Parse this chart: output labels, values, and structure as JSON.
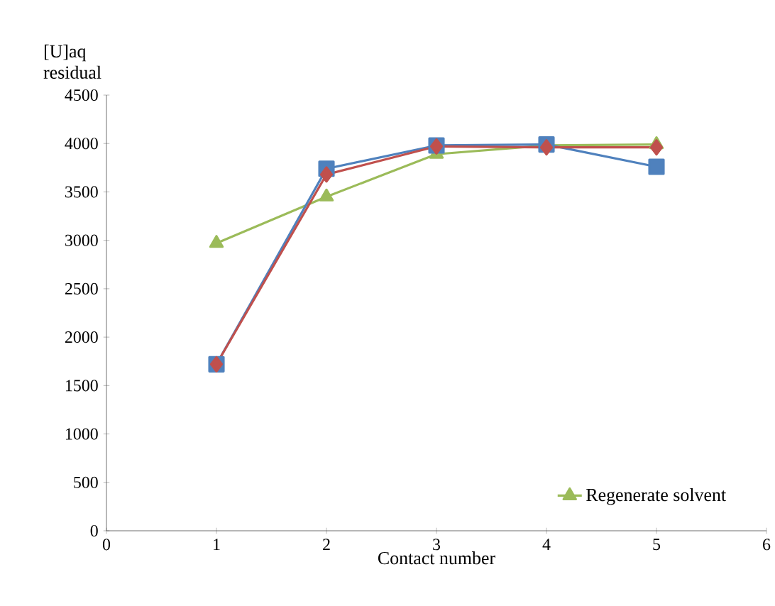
{
  "chart_data": {
    "type": "line",
    "xlabel": "Contact number",
    "ylabel": "[U]aq residual",
    "x": [
      1,
      2,
      3,
      4,
      5
    ],
    "series": [
      {
        "color": "#4f81bd",
        "marker": "square",
        "values": [
          1720,
          3740,
          3980,
          3990,
          3760
        ]
      },
      {
        "color": "#c0504d",
        "marker": "diamond",
        "values": [
          1720,
          3680,
          3970,
          3960,
          3960
        ]
      },
      {
        "name": "Regenerate solvent",
        "color": "#9bbb59",
        "marker": "triangle",
        "values": [
          2970,
          3450,
          3890,
          3980,
          3990
        ]
      }
    ],
    "xlim": [
      0,
      6
    ],
    "xticks": [
      0,
      1,
      2,
      3,
      4,
      5,
      6
    ],
    "ylim": [
      0,
      4500
    ],
    "yticks": [
      0,
      500,
      1000,
      1500,
      2000,
      2500,
      3000,
      3500,
      4000,
      4500
    ],
    "grid": false,
    "legend": "bottom right",
    "line_style": "solid"
  }
}
